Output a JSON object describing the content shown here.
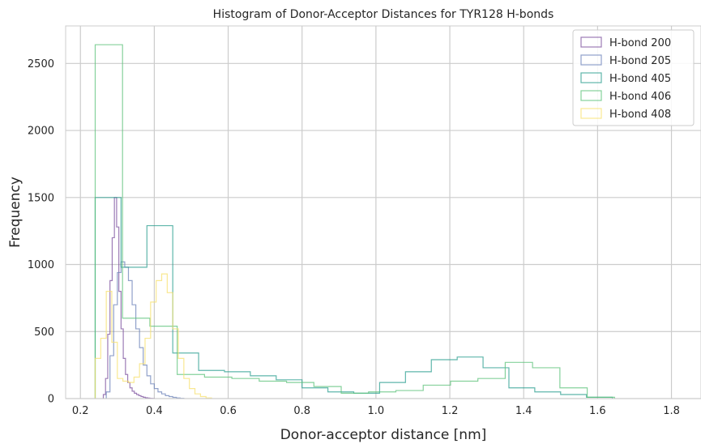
{
  "chart_data": {
    "type": "histogram",
    "title": "Histogram of Donor-Acceptor Distances for TYR128 H-bonds",
    "xlabel": "Donor-acceptor distance [nm]",
    "ylabel": "Frequency",
    "xlim": [
      0.16,
      1.88
    ],
    "ylim": [
      0,
      2780
    ],
    "xticks": [
      0.2,
      0.4,
      0.6,
      0.8,
      1.0,
      1.2,
      1.4,
      1.6,
      1.8
    ],
    "xtick_labels": [
      "0.2",
      "0.4",
      "0.6",
      "0.8",
      "1.0",
      "1.2",
      "1.4",
      "1.6",
      "1.8"
    ],
    "yticks": [
      0,
      500,
      1000,
      1500,
      2000,
      2500
    ],
    "ytick_labels": [
      "0",
      "500",
      "1000",
      "1500",
      "2000",
      "2500"
    ],
    "grid": true,
    "legend_position": "top-right",
    "series": [
      {
        "name": "H-bond 200",
        "color": "#7b4f9e",
        "edges": [
          0.262,
          0.268,
          0.274,
          0.28,
          0.286,
          0.292,
          0.298,
          0.304,
          0.31,
          0.316,
          0.322,
          0.328,
          0.334,
          0.34,
          0.346,
          0.352,
          0.358,
          0.364,
          0.37,
          0.376,
          0.382,
          0.388,
          0.394,
          0.4
        ],
        "counts": [
          30,
          150,
          480,
          880,
          1200,
          1500,
          1280,
          800,
          520,
          300,
          180,
          120,
          80,
          55,
          40,
          30,
          22,
          15,
          10,
          6,
          4,
          2,
          1
        ]
      },
      {
        "name": "H-bond 205",
        "color": "#6b82b8",
        "edges": [
          0.27,
          0.28,
          0.29,
          0.3,
          0.31,
          0.32,
          0.33,
          0.34,
          0.35,
          0.36,
          0.37,
          0.38,
          0.39,
          0.4,
          0.41,
          0.42,
          0.43,
          0.44,
          0.45,
          0.46,
          0.47,
          0.48
        ],
        "counts": [
          50,
          320,
          700,
          940,
          1020,
          980,
          880,
          700,
          520,
          380,
          250,
          170,
          110,
          75,
          50,
          35,
          22,
          15,
          9,
          5,
          2
        ]
      },
      {
        "name": "H-bond 405",
        "color": "#2a9d8f",
        "edges": [
          0.24,
          0.31,
          0.38,
          0.45,
          0.52,
          0.59,
          0.66,
          0.73,
          0.8,
          0.87,
          0.94,
          1.01,
          1.08,
          1.15,
          1.22,
          1.29,
          1.36,
          1.43,
          1.5,
          1.57,
          1.64
        ],
        "counts": [
          1500,
          980,
          1290,
          340,
          210,
          200,
          170,
          140,
          80,
          50,
          40,
          120,
          200,
          290,
          310,
          230,
          80,
          50,
          30,
          10
        ]
      },
      {
        "name": "H-bond 406",
        "color": "#5cc27a",
        "edges": [
          0.24,
          0.314,
          0.388,
          0.462,
          0.536,
          0.61,
          0.684,
          0.758,
          0.832,
          0.906,
          0.98,
          1.054,
          1.128,
          1.202,
          1.276,
          1.35,
          1.424,
          1.498,
          1.572,
          1.646
        ],
        "counts": [
          2640,
          600,
          540,
          180,
          160,
          150,
          130,
          120,
          90,
          40,
          50,
          60,
          100,
          130,
          150,
          270,
          230,
          80,
          10
        ]
      },
      {
        "name": "H-bond 408",
        "color": "#f7e06e",
        "edges": [
          0.24,
          0.255,
          0.27,
          0.285,
          0.3,
          0.315,
          0.33,
          0.345,
          0.36,
          0.375,
          0.39,
          0.405,
          0.42,
          0.435,
          0.45,
          0.465,
          0.48,
          0.495,
          0.51,
          0.525,
          0.54,
          0.555
        ],
        "counts": [
          300,
          450,
          800,
          420,
          150,
          130,
          120,
          160,
          260,
          450,
          720,
          880,
          930,
          790,
          520,
          300,
          150,
          75,
          35,
          15,
          5
        ]
      }
    ]
  }
}
